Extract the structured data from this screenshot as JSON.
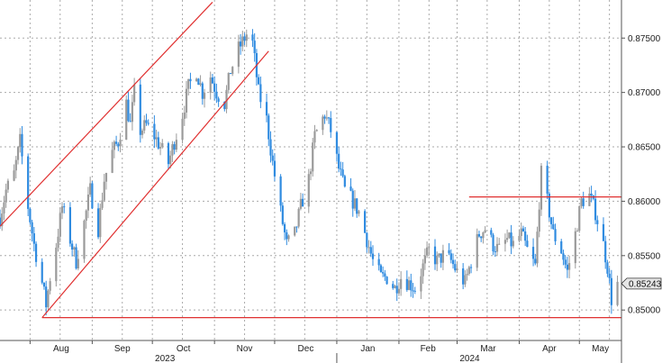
{
  "chart_data": {
    "type": "candlestick",
    "colors": {
      "up": "#9a9a9a",
      "down": "#2f8be0",
      "trendline": "#e03030",
      "grid": "#aaaaaa",
      "axis": "#555555"
    },
    "ylim": [
      0.8472,
      0.8785
    ],
    "yticks": [
      "0.87500",
      "0.87000",
      "0.86500",
      "0.86000",
      "0.85500",
      "0.85000"
    ],
    "ytick_values": [
      0.875,
      0.87,
      0.865,
      0.86,
      0.855,
      0.85
    ],
    "xlim": [
      "2023-07-17",
      "2024-05-22"
    ],
    "month_labels": [
      {
        "label": "Aug",
        "date": "2023-08-01"
      },
      {
        "label": "Sep",
        "date": "2023-09-01"
      },
      {
        "label": "Oct",
        "date": "2023-10-01"
      },
      {
        "label": "Nov",
        "date": "2023-11-01"
      },
      {
        "label": "Dec",
        "date": "2023-12-01"
      },
      {
        "label": "Jan",
        "date": "2024-01-01"
      },
      {
        "label": "Feb",
        "date": "2024-02-01"
      },
      {
        "label": "Mar",
        "date": "2024-03-01"
      },
      {
        "label": "Apr",
        "date": "2024-04-01"
      },
      {
        "label": "May",
        "date": "2024-05-01"
      }
    ],
    "year_labels": [
      {
        "label": "2023",
        "date": "2023-10-01"
      },
      {
        "label": "2024",
        "date": "2024-03-01"
      }
    ],
    "last_value": "0.85243",
    "last_value_num": 0.85243,
    "trendlines": [
      {
        "name": "channel-upper",
        "from": [
          "2023-07-17",
          0.8577
        ],
        "to": [
          "2023-10-31",
          0.8783
        ]
      },
      {
        "name": "channel-lower",
        "from": [
          "2023-08-07",
          0.8493
        ],
        "to": [
          "2023-11-28",
          0.8738
        ]
      },
      {
        "name": "support",
        "from": [
          "2023-08-07",
          0.8493
        ],
        "to": [
          "2024-05-22",
          0.8493
        ]
      },
      {
        "name": "resistance",
        "from": [
          "2024-03-07",
          0.8604
        ],
        "to": [
          "2024-05-22",
          0.8604
        ]
      }
    ],
    "close_path": [
      [
        "2023-07-17",
        0.8585
      ],
      [
        "2023-07-20",
        0.861
      ],
      [
        "2023-07-24",
        0.8625
      ],
      [
        "2023-07-27",
        0.8655
      ],
      [
        "2023-07-31",
        0.8595
      ],
      [
        "2023-08-03",
        0.856
      ],
      [
        "2023-08-07",
        0.8525
      ],
      [
        "2023-08-09",
        0.8505
      ],
      [
        "2023-08-11",
        0.853
      ],
      [
        "2023-08-14",
        0.856
      ],
      [
        "2023-08-17",
        0.8595
      ],
      [
        "2023-08-21",
        0.8565
      ],
      [
        "2023-08-24",
        0.8545
      ],
      [
        "2023-08-28",
        0.858
      ],
      [
        "2023-08-31",
        0.861
      ],
      [
        "2023-09-04",
        0.8575
      ],
      [
        "2023-09-07",
        0.862
      ],
      [
        "2023-09-11",
        0.8645
      ],
      [
        "2023-09-14",
        0.8655
      ],
      [
        "2023-09-18",
        0.869
      ],
      [
        "2023-09-20",
        0.867
      ],
      [
        "2023-09-22",
        0.87
      ],
      [
        "2023-09-25",
        0.8665
      ],
      [
        "2023-09-28",
        0.867
      ],
      [
        "2023-10-02",
        0.866
      ],
      [
        "2023-10-05",
        0.865
      ],
      [
        "2023-10-09",
        0.8635
      ],
      [
        "2023-10-12",
        0.8655
      ],
      [
        "2023-10-16",
        0.868
      ],
      [
        "2023-10-19",
        0.8705
      ],
      [
        "2023-10-23",
        0.872
      ],
      [
        "2023-10-26",
        0.87
      ],
      [
        "2023-10-30",
        0.8715
      ],
      [
        "2023-11-02",
        0.87
      ],
      [
        "2023-11-06",
        0.869
      ],
      [
        "2023-11-09",
        0.872
      ],
      [
        "2023-11-13",
        0.874
      ],
      [
        "2023-11-16",
        0.875
      ],
      [
        "2023-11-19",
        0.876
      ],
      [
        "2023-11-21",
        0.873
      ],
      [
        "2023-11-23",
        0.87
      ],
      [
        "2023-11-27",
        0.8675
      ],
      [
        "2023-11-30",
        0.8635
      ],
      [
        "2023-12-04",
        0.859
      ],
      [
        "2023-12-07",
        0.856
      ],
      [
        "2023-12-11",
        0.857
      ],
      [
        "2023-12-14",
        0.8595
      ],
      [
        "2023-12-18",
        0.862
      ],
      [
        "2023-12-21",
        0.866
      ],
      [
        "2023-12-26",
        0.868
      ],
      [
        "2023-12-29",
        0.8665
      ],
      [
        "2024-01-02",
        0.863
      ],
      [
        "2024-01-05",
        0.861
      ],
      [
        "2024-01-09",
        0.86
      ],
      [
        "2024-01-12",
        0.859
      ],
      [
        "2024-01-16",
        0.8565
      ],
      [
        "2024-01-19",
        0.8545
      ],
      [
        "2024-01-23",
        0.853
      ],
      [
        "2024-01-26",
        0.853
      ],
      [
        "2024-01-30",
        0.852
      ],
      [
        "2024-02-02",
        0.853
      ],
      [
        "2024-02-06",
        0.8525
      ],
      [
        "2024-02-09",
        0.852
      ],
      [
        "2024-02-13",
        0.854
      ],
      [
        "2024-02-16",
        0.8555
      ],
      [
        "2024-02-20",
        0.8545
      ],
      [
        "2024-02-23",
        0.855
      ],
      [
        "2024-02-27",
        0.8545
      ],
      [
        "2024-03-01",
        0.8535
      ],
      [
        "2024-03-05",
        0.8525
      ],
      [
        "2024-03-08",
        0.8545
      ],
      [
        "2024-03-12",
        0.857
      ],
      [
        "2024-03-15",
        0.8575
      ],
      [
        "2024-03-19",
        0.856
      ],
      [
        "2024-03-22",
        0.8555
      ],
      [
        "2024-03-26",
        0.8565
      ],
      [
        "2024-03-29",
        0.856
      ],
      [
        "2024-04-02",
        0.857
      ],
      [
        "2024-04-05",
        0.8555
      ],
      [
        "2024-04-09",
        0.854
      ],
      [
        "2024-04-11",
        0.86
      ],
      [
        "2024-04-12",
        0.8625
      ],
      [
        "2024-04-15",
        0.86
      ],
      [
        "2024-04-18",
        0.857
      ],
      [
        "2024-04-22",
        0.8555
      ],
      [
        "2024-04-25",
        0.8535
      ],
      [
        "2024-04-29",
        0.857
      ],
      [
        "2024-05-02",
        0.86
      ],
      [
        "2024-05-06",
        0.8605
      ],
      [
        "2024-05-09",
        0.859
      ],
      [
        "2024-05-13",
        0.856
      ],
      [
        "2024-05-15",
        0.854
      ],
      [
        "2024-05-17",
        0.851
      ],
      [
        "2024-05-20",
        0.8524
      ]
    ]
  }
}
